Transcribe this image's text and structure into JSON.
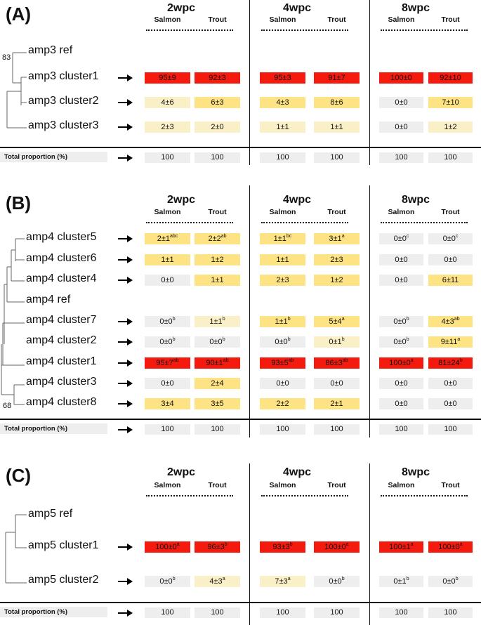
{
  "colors": {
    "high": "#f51a0e",
    "mid": "#fde384",
    "low": "#faf0c8",
    "zero": "#eeeeee"
  },
  "columns": {
    "weeks": [
      "2wpc",
      "4wpc",
      "8wpc"
    ],
    "species": [
      "Salmon",
      "Trout"
    ]
  },
  "total_label": "Total proportion (%)",
  "panels": [
    {
      "letter": "(A)",
      "bootstrap": "83",
      "rows": [
        {
          "label": "amp3 ref",
          "cells": null
        },
        {
          "label": "amp3 cluster1",
          "cells": [
            {
              "v": "95±9",
              "s": "",
              "c": "high"
            },
            {
              "v": "92±3",
              "s": "",
              "c": "high"
            },
            {
              "v": "95±3",
              "s": "",
              "c": "high"
            },
            {
              "v": "91±7",
              "s": "",
              "c": "high"
            },
            {
              "v": "100±0",
              "s": "",
              "c": "high"
            },
            {
              "v": "92±10",
              "s": "",
              "c": "high"
            }
          ]
        },
        {
          "label": "amp3 cluster2",
          "cells": [
            {
              "v": "4±6",
              "s": "",
              "c": "low"
            },
            {
              "v": "6±3",
              "s": "",
              "c": "mid"
            },
            {
              "v": "4±3",
              "s": "",
              "c": "mid"
            },
            {
              "v": "8±6",
              "s": "",
              "c": "mid"
            },
            {
              "v": "0±0",
              "s": "",
              "c": "zero"
            },
            {
              "v": "7±10",
              "s": "",
              "c": "mid"
            }
          ]
        },
        {
          "label": "amp3 cluster3",
          "cells": [
            {
              "v": "2±3",
              "s": "",
              "c": "low"
            },
            {
              "v": "2±0",
              "s": "",
              "c": "low"
            },
            {
              "v": "1±1",
              "s": "",
              "c": "low"
            },
            {
              "v": "1±1",
              "s": "",
              "c": "low"
            },
            {
              "v": "0±0",
              "s": "",
              "c": "zero"
            },
            {
              "v": "1±2",
              "s": "",
              "c": "low"
            }
          ]
        }
      ],
      "totals": [
        "100",
        "100",
        "100",
        "100",
        "100",
        "100"
      ]
    },
    {
      "letter": "(B)",
      "bootstrap": "68",
      "rows": [
        {
          "label": "amp4 cluster5",
          "cells": [
            {
              "v": "2±1",
              "s": "abc",
              "c": "mid"
            },
            {
              "v": "2±2",
              "s": "ab",
              "c": "mid"
            },
            {
              "v": "1±1",
              "s": "bc",
              "c": "mid"
            },
            {
              "v": "3±1",
              "s": "a",
              "c": "mid"
            },
            {
              "v": "0±0",
              "s": "c",
              "c": "zero"
            },
            {
              "v": "0±0",
              "s": "c",
              "c": "zero"
            }
          ]
        },
        {
          "label": "amp4 cluster6",
          "cells": [
            {
              "v": "1±1",
              "s": "",
              "c": "mid"
            },
            {
              "v": "1±2",
              "s": "",
              "c": "mid"
            },
            {
              "v": "1±1",
              "s": "",
              "c": "mid"
            },
            {
              "v": "2±3",
              "s": "",
              "c": "mid"
            },
            {
              "v": "0±0",
              "s": "",
              "c": "zero"
            },
            {
              "v": "0±0",
              "s": "",
              "c": "zero"
            }
          ]
        },
        {
          "label": "amp4 cluster4",
          "cells": [
            {
              "v": "0±0",
              "s": "",
              "c": "zero"
            },
            {
              "v": "1±1",
              "s": "",
              "c": "mid"
            },
            {
              "v": "2±3",
              "s": "",
              "c": "mid"
            },
            {
              "v": "1±2",
              "s": "",
              "c": "mid"
            },
            {
              "v": "0±0",
              "s": "",
              "c": "zero"
            },
            {
              "v": "6±11",
              "s": "",
              "c": "mid"
            }
          ]
        },
        {
          "label": "amp4 ref",
          "cells": null
        },
        {
          "label": "amp4 cluster7",
          "cells": [
            {
              "v": "0±0",
              "s": "b",
              "c": "zero"
            },
            {
              "v": "1±1",
              "s": "b",
              "c": "low"
            },
            {
              "v": "1±1",
              "s": "b",
              "c": "mid"
            },
            {
              "v": "5±4",
              "s": "a",
              "c": "mid"
            },
            {
              "v": "0±0",
              "s": "b",
              "c": "zero"
            },
            {
              "v": "4±3",
              "s": "ab",
              "c": "mid"
            }
          ]
        },
        {
          "label": "amp4 cluster2",
          "cells": [
            {
              "v": "0±0",
              "s": "b",
              "c": "zero"
            },
            {
              "v": "0±0",
              "s": "b",
              "c": "zero"
            },
            {
              "v": "0±0",
              "s": "b",
              "c": "zero"
            },
            {
              "v": "0±1",
              "s": "b",
              "c": "low"
            },
            {
              "v": "0±0",
              "s": "b",
              "c": "zero"
            },
            {
              "v": "9±11",
              "s": "a",
              "c": "mid"
            }
          ]
        },
        {
          "label": "amp4 cluster1",
          "cells": [
            {
              "v": "95±7",
              "s": "ab",
              "c": "high"
            },
            {
              "v": "90±1",
              "s": "ab",
              "c": "high"
            },
            {
              "v": "93±5",
              "s": "ab",
              "c": "high"
            },
            {
              "v": "86±3",
              "s": "ab",
              "c": "high"
            },
            {
              "v": "100±0",
              "s": "a",
              "c": "high"
            },
            {
              "v": "81±24",
              "s": "b",
              "c": "high"
            }
          ]
        },
        {
          "label": "amp4 cluster3",
          "cells": [
            {
              "v": "0±0",
              "s": "",
              "c": "zero"
            },
            {
              "v": "2±4",
              "s": "",
              "c": "mid"
            },
            {
              "v": "0±0",
              "s": "",
              "c": "zero"
            },
            {
              "v": "0±0",
              "s": "",
              "c": "zero"
            },
            {
              "v": "0±0",
              "s": "",
              "c": "zero"
            },
            {
              "v": "0±0",
              "s": "",
              "c": "zero"
            }
          ]
        },
        {
          "label": "amp4 cluster8",
          "cells": [
            {
              "v": "3±4",
              "s": "",
              "c": "mid"
            },
            {
              "v": "3±5",
              "s": "",
              "c": "mid"
            },
            {
              "v": "2±2",
              "s": "",
              "c": "mid"
            },
            {
              "v": "2±1",
              "s": "",
              "c": "mid"
            },
            {
              "v": "0±0",
              "s": "",
              "c": "zero"
            },
            {
              "v": "0±0",
              "s": "",
              "c": "zero"
            }
          ]
        }
      ],
      "totals": [
        "100",
        "100",
        "100",
        "100",
        "100",
        "100"
      ]
    },
    {
      "letter": "(C)",
      "bootstrap": "",
      "rows": [
        {
          "label": "amp5 ref",
          "cells": null
        },
        {
          "label": "amp5 cluster1",
          "cells": [
            {
              "v": "100±0",
              "s": "a",
              "c": "high"
            },
            {
              "v": "96±3",
              "s": "b",
              "c": "high"
            },
            {
              "v": "93±3",
              "s": "b",
              "c": "high"
            },
            {
              "v": "100±0",
              "s": "a",
              "c": "high"
            },
            {
              "v": "100±1",
              "s": "a",
              "c": "high"
            },
            {
              "v": "100±0",
              "s": "a",
              "c": "high"
            }
          ]
        },
        {
          "label": "amp5 cluster2",
          "cells": [
            {
              "v": "0±0",
              "s": "b",
              "c": "zero"
            },
            {
              "v": "4±3",
              "s": "a",
              "c": "low"
            },
            {
              "v": "7±3",
              "s": "a",
              "c": "low"
            },
            {
              "v": "0±0",
              "s": "b",
              "c": "zero"
            },
            {
              "v": "0±1",
              "s": "b",
              "c": "zero"
            },
            {
              "v": "0±0",
              "s": "b",
              "c": "zero"
            }
          ]
        }
      ],
      "totals": [
        "100",
        "100",
        "100",
        "100",
        "100",
        "100"
      ]
    }
  ]
}
